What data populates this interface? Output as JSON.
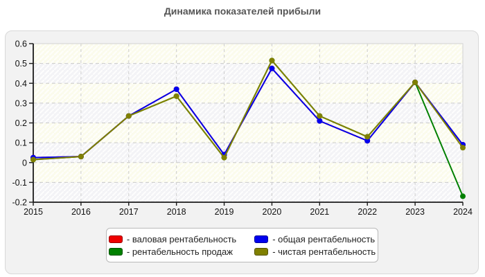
{
  "title": "Динамика показателей прибыли",
  "legend": {
    "prefix": "- ",
    "order": [
      0,
      2,
      1,
      3
    ],
    "position": "bottom"
  },
  "chart_data": {
    "type": "line",
    "x": [
      "2015",
      "2016",
      "2017",
      "2018",
      "2019",
      "2020",
      "2021",
      "2022",
      "2023",
      "2024"
    ],
    "series": [
      {
        "name": "валовая рентабельность",
        "color": "#ee0000",
        "values": [
          0.025,
          0.03,
          0.235,
          0.37,
          0.04,
          0.475,
          0.21,
          0.11,
          0.405,
          0.09
        ]
      },
      {
        "name": "рентабельность продаж",
        "color": "#008000",
        "values": [
          0.015,
          0.03,
          0.235,
          0.335,
          0.025,
          0.515,
          0.235,
          0.13,
          0.405,
          -0.17
        ]
      },
      {
        "name": "общая рентабельность",
        "color": "#0000ee",
        "values": [
          0.025,
          0.03,
          0.235,
          0.37,
          0.04,
          0.475,
          0.21,
          0.11,
          0.405,
          0.09
        ]
      },
      {
        "name": "чистая рентабельность",
        "color": "#808000",
        "values": [
          0.015,
          0.03,
          0.235,
          0.335,
          0.025,
          0.515,
          0.235,
          0.13,
          0.405,
          0.075
        ]
      }
    ],
    "ylim": [
      -0.2,
      0.6
    ],
    "ytick_step": 0.1,
    "ytick_labels": [
      "0.6",
      "0.5",
      "0.4",
      "0.3",
      "0.2",
      "0.1",
      "0",
      "-0.1",
      "-0.2"
    ],
    "grid": true,
    "legend_position": "bottom"
  }
}
